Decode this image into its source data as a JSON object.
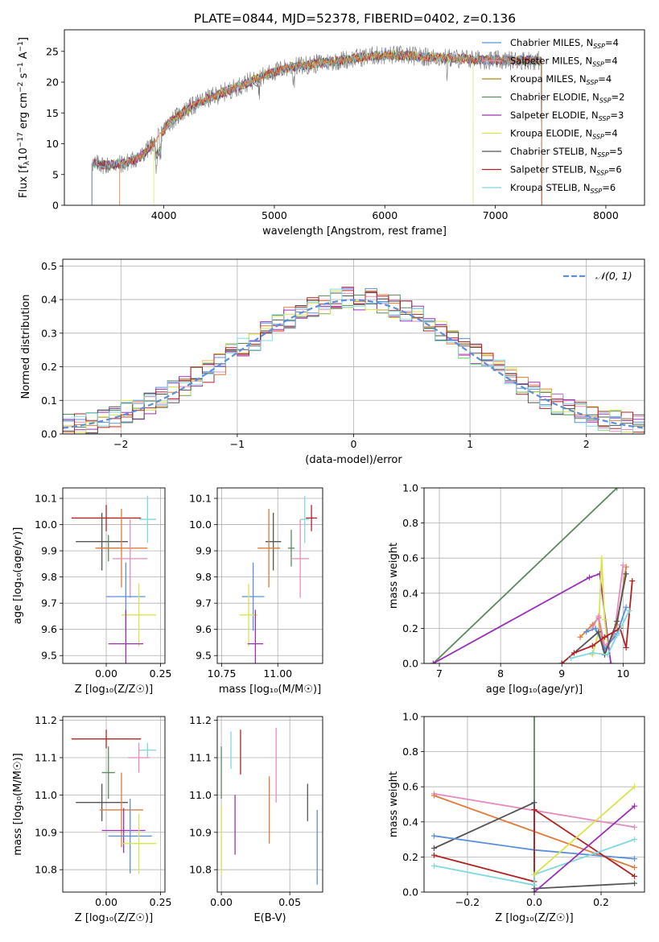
{
  "figure": {
    "title": "PLATE=0844, MJD=52378, FIBERID=0402, z=0.136"
  },
  "chart_data": [
    {
      "id": "spectrum",
      "type": "line",
      "xlabel": "wavelength [Angstrom, rest frame]",
      "ylabel": "Flux [f_λ10^-17 erg cm^-2 s^-1 A^-1]",
      "xlim": [
        3100,
        8350
      ],
      "ylim": [
        0,
        28.5
      ],
      "xticks": [
        4000,
        5000,
        6000,
        7000,
        8000
      ],
      "yticks": [
        0,
        5,
        10,
        15,
        20,
        25
      ],
      "grid": false,
      "legend_position": "top-right",
      "continuum": {
        "x": [
          3350,
          3500,
          3650,
          3800,
          3950,
          4050,
          4200,
          4350,
          4500,
          4700,
          4900,
          5100,
          5300,
          5500,
          5700,
          5900,
          6100,
          6300,
          6500,
          6700,
          6900,
          7100,
          7300,
          7400
        ],
        "y": [
          6.8,
          6.5,
          6.8,
          8.0,
          11.0,
          13.5,
          15.5,
          17.0,
          18.0,
          19.5,
          21.0,
          22.3,
          22.8,
          23.3,
          23.8,
          24.3,
          24.4,
          24.2,
          24.0,
          23.8,
          23.6,
          23.5,
          23.6,
          23.5
        ]
      },
      "series": [
        {
          "name": "Chabrier MILES, N_SSP=4",
          "color": "#5b8fdc",
          "range": [
            3350,
            7420
          ]
        },
        {
          "name": "Salpeter MILES, N_SSP=4",
          "color": "#e58cbd",
          "range": [
            3350,
            7420
          ]
        },
        {
          "name": "Kroupa MILES, N_SSP=4",
          "color": "#b8860b",
          "range": [
            3350,
            7420
          ]
        },
        {
          "name": "Chabrier ELODIE, N_SSP=2",
          "color": "#5a8a5e",
          "range": [
            3350,
            7420
          ]
        },
        {
          "name": "Salpeter ELODIE, N_SSP=3",
          "color": "#9b30b8",
          "range": [
            3350,
            7420
          ]
        },
        {
          "name": "Kroupa ELODIE, N_SSP=4",
          "color": "#d8e44a",
          "range": [
            3910,
            6800
          ]
        },
        {
          "name": "Chabrier STELIB, N_SSP=5",
          "color": "#555555",
          "range": [
            3350,
            7420
          ]
        },
        {
          "name": "Salpeter STELIB, N_SSP=6",
          "color": "#b22222",
          "range": [
            3350,
            7420
          ]
        },
        {
          "name": "Kroupa STELIB, N_SSP=6",
          "color": "#7fd8e0",
          "range": [
            3350,
            7420
          ]
        }
      ],
      "observed_color": "#777777",
      "model_fit_color": "#e07b3a"
    },
    {
      "id": "residuals",
      "type": "line",
      "xlabel": "(data-model)/error",
      "ylabel": "Normed distribution",
      "xlim": [
        -2.5,
        2.5
      ],
      "ylim": [
        0,
        0.52
      ],
      "xticks": [
        -2,
        -1,
        0,
        1,
        2
      ],
      "yticks": [
        0.0,
        0.1,
        0.2,
        0.3,
        0.4,
        0.5
      ],
      "grid": true,
      "legend_position": "top-right",
      "reference": {
        "name": "𝒩(0, 1)",
        "color": "#5b8fdc",
        "mean": 0,
        "sigma": 1
      },
      "histogram_colors": [
        "#5b8fdc",
        "#e58cbd",
        "#e07b3a",
        "#5a8a5e",
        "#9b30b8",
        "#d8e44a",
        "#555555",
        "#b22222",
        "#7fd8e0"
      ]
    },
    {
      "id": "z_vs_age",
      "type": "scatter",
      "xlabel": "Z [log10(Z/Z☉)]",
      "ylabel": "age  [log10(age/yr)]",
      "xlim": [
        -0.2,
        0.27
      ],
      "ylim": [
        9.47,
        10.14
      ],
      "xticks": [
        0.0,
        0.25
      ],
      "yticks": [
        9.5,
        9.6,
        9.7,
        9.8,
        9.9,
        10.0,
        10.1
      ],
      "grid": true,
      "points": [
        {
          "x": 0.0,
          "y": 10.025,
          "xerr": 0.16,
          "yerr": 0.05,
          "color": "#b22222"
        },
        {
          "x": 0.19,
          "y": 10.02,
          "xerr": 0.04,
          "yerr": 0.09,
          "color": "#7fd8e0"
        },
        {
          "x": -0.02,
          "y": 9.935,
          "xerr": 0.12,
          "yerr": 0.11,
          "color": "#555555"
        },
        {
          "x": 0.01,
          "y": 9.91,
          "xerr": 0.05,
          "yerr": 0.05,
          "color": "#5a8a5e"
        },
        {
          "x": 0.07,
          "y": 9.91,
          "xerr": 0.12,
          "yerr": 0.15,
          "color": "#e07b3a"
        },
        {
          "x": 0.11,
          "y": 9.87,
          "xerr": 0.08,
          "yerr": 0.15,
          "color": "#e58cbd"
        },
        {
          "x": 0.09,
          "y": 9.725,
          "xerr": 0.09,
          "yerr": 0.13,
          "color": "#5b8fdc"
        },
        {
          "x": 0.15,
          "y": 9.655,
          "xerr": 0.08,
          "yerr": 0.12,
          "color": "#d8e44a"
        },
        {
          "x": 0.09,
          "y": 9.545,
          "xerr": 0.08,
          "yerr": 0.13,
          "color": "#9b30b8"
        }
      ]
    },
    {
      "id": "mass_vs_age",
      "type": "scatter",
      "xlabel": "mass [log10(M/M☉)]",
      "ylabel": "",
      "xlim": [
        10.73,
        11.2
      ],
      "ylim": [
        9.47,
        10.14
      ],
      "xticks": [
        10.75,
        11.0
      ],
      "yticks": [
        9.5,
        9.6,
        9.7,
        9.8,
        9.9,
        10.0,
        10.1
      ],
      "grid": true,
      "points": [
        {
          "x": 11.15,
          "y": 10.025,
          "xerr": 0.025,
          "yerr": 0.05,
          "color": "#b22222"
        },
        {
          "x": 11.12,
          "y": 10.02,
          "xerr": 0.02,
          "yerr": 0.09,
          "color": "#7fd8e0"
        },
        {
          "x": 10.98,
          "y": 9.935,
          "xerr": 0.035,
          "yerr": 0.11,
          "color": "#555555"
        },
        {
          "x": 11.06,
          "y": 9.91,
          "xerr": 0.015,
          "yerr": 0.07,
          "color": "#5a8a5e"
        },
        {
          "x": 10.96,
          "y": 9.91,
          "xerr": 0.05,
          "yerr": 0.15,
          "color": "#e07b3a"
        },
        {
          "x": 11.1,
          "y": 9.87,
          "xerr": 0.04,
          "yerr": 0.15,
          "color": "#e58cbd"
        },
        {
          "x": 10.89,
          "y": 9.725,
          "xerr": 0.05,
          "yerr": 0.13,
          "color": "#5b8fdc"
        },
        {
          "x": 10.87,
          "y": 9.655,
          "xerr": 0.04,
          "yerr": 0.12,
          "color": "#d8e44a"
        },
        {
          "x": 10.9,
          "y": 9.545,
          "xerr": 0.035,
          "yerr": 0.13,
          "color": "#9b30b8"
        }
      ]
    },
    {
      "id": "age_vs_weight",
      "type": "line",
      "xlabel": "age  [log10(age/yr)]",
      "ylabel": "mass weight",
      "xlim": [
        6.75,
        10.35
      ],
      "ylim": [
        0,
        1.0
      ],
      "xticks": [
        7,
        8,
        9,
        10
      ],
      "yticks": [
        0.0,
        0.2,
        0.4,
        0.6,
        0.8,
        1.0
      ],
      "grid": true,
      "series": [
        {
          "color": "#5a8a5e",
          "x": [
            6.9,
            9.9
          ],
          "y": [
            0.0,
            1.0
          ]
        },
        {
          "color": "#9b30b8",
          "x": [
            6.9,
            9.45,
            9.62,
            9.8
          ],
          "y": [
            0.0,
            0.49,
            0.51,
            0.0
          ]
        },
        {
          "color": "#d8e44a",
          "x": [
            9.5,
            9.6,
            9.65,
            9.7,
            9.75
          ],
          "y": [
            0.05,
            0.18,
            0.6,
            0.25,
            0.1
          ]
        },
        {
          "color": "#e07b3a",
          "x": [
            9.3,
            9.5,
            9.6,
            9.7,
            9.9,
            10.05
          ],
          "y": [
            0.15,
            0.22,
            0.26,
            0.05,
            0.22,
            0.55
          ]
        },
        {
          "color": "#e58cbd",
          "x": [
            9.5,
            9.6,
            9.7,
            9.85,
            10.0
          ],
          "y": [
            0.2,
            0.27,
            0.1,
            0.15,
            0.56
          ]
        },
        {
          "color": "#5b8fdc",
          "x": [
            9.4,
            9.55,
            9.7,
            9.9,
            10.05
          ],
          "y": [
            0.18,
            0.2,
            0.08,
            0.17,
            0.32
          ]
        },
        {
          "color": "#555555",
          "x": [
            9.0,
            9.6,
            9.7,
            9.9,
            10.05
          ],
          "y": [
            0.0,
            0.18,
            0.05,
            0.24,
            0.51
          ]
        },
        {
          "color": "#b22222",
          "x": [
            9.0,
            9.2,
            9.5,
            9.7,
            9.95,
            10.05,
            10.15
          ],
          "y": [
            0.0,
            0.06,
            0.1,
            0.15,
            0.2,
            0.09,
            0.47
          ]
        },
        {
          "color": "#7fd8e0",
          "x": [
            9.15,
            9.5,
            9.75,
            9.9,
            10.1
          ],
          "y": [
            0.03,
            0.06,
            0.05,
            0.16,
            0.3
          ]
        }
      ]
    },
    {
      "id": "z_vs_mass",
      "type": "scatter",
      "xlabel": "Z [log10(Z/Z☉)]",
      "ylabel": "mass [log10(M/M☉)]",
      "xlim": [
        -0.2,
        0.27
      ],
      "ylim": [
        10.74,
        11.21
      ],
      "xticks": [
        0.0,
        0.25
      ],
      "yticks": [
        10.8,
        10.9,
        11.0,
        11.1,
        11.2
      ],
      "grid": true,
      "points": [
        {
          "x": 0.0,
          "y": 11.15,
          "xerr": 0.16,
          "yerr": 0.025,
          "color": "#b22222"
        },
        {
          "x": 0.19,
          "y": 11.12,
          "xerr": 0.04,
          "yerr": 0.02,
          "color": "#7fd8e0"
        },
        {
          "x": 0.15,
          "y": 11.1,
          "xerr": 0.05,
          "yerr": 0.04,
          "color": "#e58cbd"
        },
        {
          "x": 0.01,
          "y": 11.06,
          "xerr": 0.03,
          "yerr": 0.07,
          "color": "#5a8a5e"
        },
        {
          "x": -0.02,
          "y": 10.98,
          "xerr": 0.12,
          "yerr": 0.05,
          "color": "#555555"
        },
        {
          "x": 0.07,
          "y": 10.96,
          "xerr": 0.1,
          "yerr": 0.1,
          "color": "#e07b3a"
        },
        {
          "x": 0.08,
          "y": 10.905,
          "xerr": 0.1,
          "yerr": 0.06,
          "color": "#9b30b8"
        },
        {
          "x": 0.11,
          "y": 10.89,
          "xerr": 0.1,
          "yerr": 0.1,
          "color": "#5b8fdc"
        },
        {
          "x": 0.15,
          "y": 10.87,
          "xerr": 0.08,
          "yerr": 0.08,
          "color": "#d8e44a"
        }
      ]
    },
    {
      "id": "ebv_vs_mass",
      "type": "scatter",
      "xlabel": "E(B-V)",
      "ylabel": "",
      "xlim": [
        -0.003,
        0.074
      ],
      "ylim": [
        10.74,
        11.21
      ],
      "xticks": [
        0.0,
        0.05
      ],
      "yticks": [
        10.8,
        10.9,
        11.0,
        11.1,
        11.2
      ],
      "grid": true,
      "points": [
        {
          "x": 0.0,
          "y": 11.06,
          "yerr": 0.07,
          "color": "#5a8a5e"
        },
        {
          "x": 0.007,
          "y": 11.12,
          "yerr": 0.05,
          "color": "#7fd8e0"
        },
        {
          "x": 0.014,
          "y": 11.115,
          "yerr": 0.06,
          "color": "#b22222"
        },
        {
          "x": 0.01,
          "y": 10.92,
          "yerr": 0.08,
          "color": "#9b30b8"
        },
        {
          "x": 0.0,
          "y": 10.88,
          "yerr": 0.09,
          "color": "#d8e44a"
        },
        {
          "x": 0.04,
          "y": 11.08,
          "yerr": 0.1,
          "color": "#e58cbd"
        },
        {
          "x": 0.035,
          "y": 10.96,
          "yerr": 0.09,
          "color": "#e07b3a"
        },
        {
          "x": 0.063,
          "y": 10.98,
          "yerr": 0.05,
          "color": "#555555"
        },
        {
          "x": 0.07,
          "y": 10.86,
          "yerr": 0.1,
          "color": "#5b8fdc"
        }
      ]
    },
    {
      "id": "z_vs_weight",
      "type": "line",
      "xlabel": "Z [log10(Z/Z☉)]",
      "ylabel": "mass weight",
      "xlim": [
        -0.33,
        0.33
      ],
      "ylim": [
        0,
        1.0
      ],
      "xticks": [
        -0.2,
        0.0,
        0.2
      ],
      "yticks": [
        0.0,
        0.2,
        0.4,
        0.6,
        0.8,
        1.0
      ],
      "grid": true,
      "series": [
        {
          "color": "#5a8a5e",
          "x": [
            0.0,
            0.0
          ],
          "y": [
            0.0,
            1.0
          ]
        },
        {
          "color": "#e58cbd",
          "x": [
            -0.3,
            0.3
          ],
          "y": [
            0.56,
            0.37
          ]
        },
        {
          "color": "#e07b3a",
          "x": [
            -0.3,
            0.3
          ],
          "y": [
            0.55,
            0.14
          ]
        },
        {
          "color": "#555555",
          "x": [
            -0.3,
            0.0,
            0.0,
            0.3
          ],
          "y": [
            0.25,
            0.51,
            0.02,
            0.05
          ]
        },
        {
          "color": "#5b8fdc",
          "x": [
            -0.3,
            0.0,
            0.3
          ],
          "y": [
            0.32,
            0.24,
            0.19
          ]
        },
        {
          "color": "#b22222",
          "x": [
            -0.3,
            0.0,
            0.0,
            0.3
          ],
          "y": [
            0.21,
            0.06,
            0.47,
            0.09
          ]
        },
        {
          "color": "#7fd8e0",
          "x": [
            -0.3,
            0.0,
            0.0,
            0.3
          ],
          "y": [
            0.15,
            0.04,
            0.1,
            0.3
          ]
        },
        {
          "color": "#d8e44a",
          "x": [
            0.0,
            0.3
          ],
          "y": [
            0.1,
            0.6
          ]
        },
        {
          "color": "#9b30b8",
          "x": [
            0.0,
            0.3
          ],
          "y": [
            0.0,
            0.49
          ]
        }
      ]
    }
  ]
}
